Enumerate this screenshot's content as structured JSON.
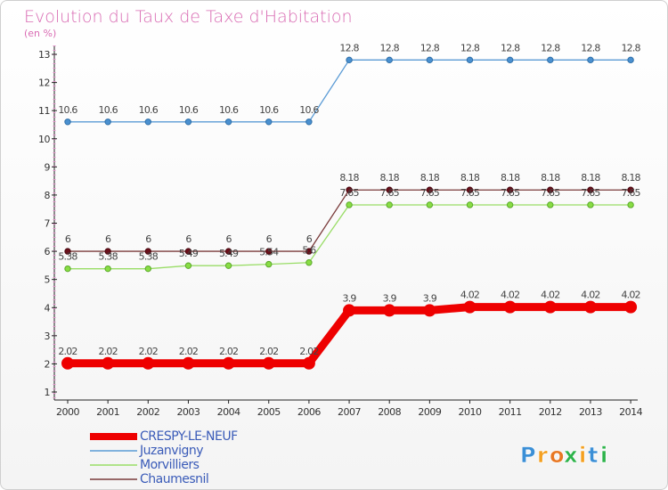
{
  "chart_data": {
    "type": "line",
    "title": "Evolution du Taux de Taxe d'Habitation",
    "subtitle": "(en %)",
    "categories": [
      "2000",
      "2001",
      "2002",
      "2003",
      "2004",
      "2005",
      "2006",
      "2007",
      "2008",
      "2009",
      "2010",
      "2011",
      "2012",
      "2013",
      "2014"
    ],
    "ylim": [
      1,
      13
    ],
    "yticks": [
      "1",
      "2",
      "3",
      "4",
      "5",
      "6",
      "7",
      "8",
      "9",
      "10",
      "11",
      "12",
      "13"
    ],
    "grid": false,
    "legend_position": "bottom-left",
    "series": [
      {
        "name": "CRESPY-LE-NEUF",
        "color": "#ee0000",
        "values": [
          2.02,
          2.02,
          2.02,
          2.02,
          2.02,
          2.02,
          2.02,
          3.9,
          3.9,
          3.9,
          4.02,
          4.02,
          4.02,
          4.02,
          4.02
        ],
        "labels": [
          "2.02",
          "2.02",
          "2.02",
          "2.02",
          "2.02",
          "2.02",
          "2.02",
          "3.9",
          "3.9",
          "3.9",
          "4.02",
          "4.02",
          "4.02",
          "4.02",
          "4.02"
        ]
      },
      {
        "name": "Juzanvigny",
        "color": "#5b9bd5",
        "values": [
          10.6,
          10.6,
          10.6,
          10.6,
          10.6,
          10.6,
          10.6,
          12.8,
          12.8,
          12.8,
          12.8,
          12.8,
          12.8,
          12.8,
          12.8
        ],
        "labels": [
          "10.6",
          "10.6",
          "10.6",
          "10.6",
          "10.6",
          "10.6",
          "10.6",
          "12.8",
          "12.8",
          "12.8",
          "12.8",
          "12.8",
          "12.8",
          "12.8",
          "12.8"
        ]
      },
      {
        "name": "Morvilliers",
        "color": "#99dd66",
        "values": [
          5.38,
          5.38,
          5.38,
          5.49,
          5.49,
          5.54,
          5.6,
          7.65,
          7.65,
          7.65,
          7.65,
          7.65,
          7.65,
          7.65,
          7.65
        ],
        "labels": [
          "5.38",
          "5.38",
          "5.38",
          "5.49",
          "5.49",
          "5.54",
          "5.6",
          "7.65",
          "7.65",
          "7.65",
          "7.65",
          "7.65",
          "7.65",
          "7.65",
          "7.65"
        ]
      },
      {
        "name": "Chaumesnil",
        "color": "#7a3b3b",
        "values": [
          6,
          6,
          6,
          6,
          6,
          6,
          6,
          8.18,
          8.18,
          8.18,
          8.18,
          8.18,
          8.18,
          8.18,
          8.18
        ],
        "labels": [
          "6",
          "6",
          "6",
          "6",
          "6",
          "6",
          "6",
          "8.18",
          "8.18",
          "8.18",
          "8.18",
          "8.18",
          "8.18",
          "8.18",
          "8.18"
        ]
      }
    ]
  },
  "logo": {
    "text": "Proxiti",
    "letters": [
      "P",
      "r",
      "o",
      "x",
      "i",
      "t",
      "i"
    ]
  }
}
